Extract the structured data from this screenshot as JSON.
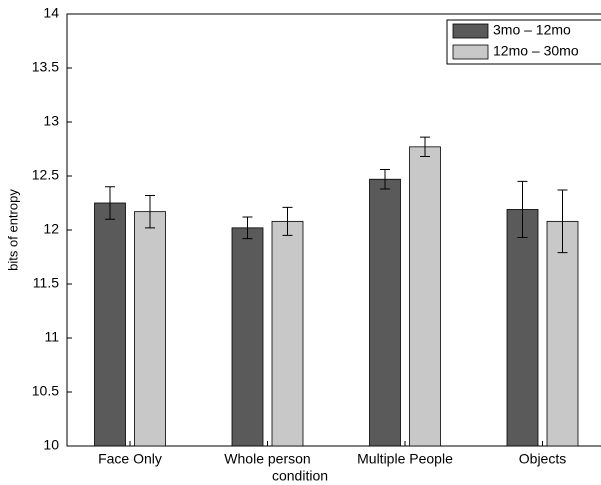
{
  "chart_data": {
    "type": "bar",
    "x_label": "condition",
    "y_label": "bits of entropy",
    "categories": [
      "Face Only",
      "Whole person",
      "Multiple People",
      "Objects"
    ],
    "series": [
      {
        "name": "3mo – 12mo",
        "color": "#5a5a5a",
        "values": [
          12.25,
          12.02,
          12.47,
          12.19
        ],
        "errors": [
          0.15,
          0.1,
          0.09,
          0.26
        ]
      },
      {
        "name": "12mo – 30mo",
        "color": "#c8c8c8",
        "values": [
          12.17,
          12.08,
          12.77,
          12.08
        ],
        "errors": [
          0.15,
          0.13,
          0.09,
          0.29
        ]
      }
    ],
    "ylim": [
      10,
      14
    ],
    "yticks": [
      10,
      10.5,
      11,
      11.5,
      12,
      12.5,
      13,
      13.5,
      14
    ],
    "legend": "upper right"
  }
}
